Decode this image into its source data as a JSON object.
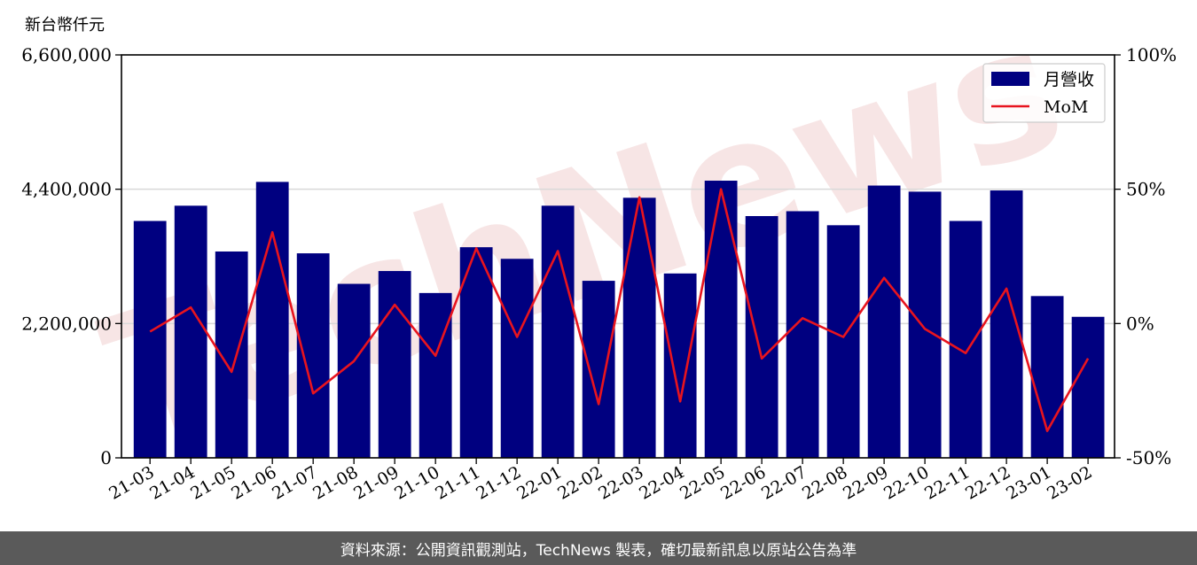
{
  "unit_label": "新台幣仟元",
  "footer_text": "資料來源：公開資訊觀測站，TechNews 製表，確切最新訊息以原站公告為準",
  "colors": {
    "bar": "#000080",
    "line": "#e8141e",
    "grid": "#d9d9d9",
    "footer_bg": "#5a5a5a"
  },
  "chart_data": {
    "type": "bar",
    "categories": [
      "21-03",
      "21-04",
      "21-05",
      "21-06",
      "21-07",
      "21-08",
      "21-09",
      "21-10",
      "21-11",
      "21-12",
      "22-01",
      "22-02",
      "22-03",
      "22-04",
      "22-05",
      "22-06",
      "22-07",
      "22-08",
      "22-09",
      "22-10",
      "22-11",
      "22-12",
      "23-01",
      "23-02"
    ],
    "series": [
      {
        "name": "月營收",
        "type": "bar",
        "axis": "left",
        "values": [
          3880000,
          4130000,
          3380000,
          4520000,
          3350000,
          2850000,
          3060000,
          2700000,
          3450000,
          3260000,
          4130000,
          2900000,
          4260000,
          3020000,
          4540000,
          3960000,
          4040000,
          3810000,
          4460000,
          4360000,
          3880000,
          4380000,
          2650000,
          2310000
        ]
      },
      {
        "name": "MoM",
        "type": "line",
        "axis": "right",
        "values": [
          -3,
          6,
          -18,
          34,
          -26,
          -14,
          7,
          -12,
          28,
          -5,
          27,
          -30,
          47,
          -29,
          50,
          -13,
          2,
          -5,
          17,
          -2,
          -11,
          13,
          -40,
          -13
        ]
      }
    ],
    "left_axis": {
      "ylim": [
        0,
        6600000
      ],
      "ticks": [
        "0",
        "2,200,000",
        "4,400,000",
        "6,600,000"
      ],
      "tick_values": [
        0,
        2200000,
        4400000,
        6600000
      ]
    },
    "right_axis": {
      "ylim": [
        -50,
        100
      ],
      "ticks": [
        "-50%",
        "0%",
        "50%",
        "100%"
      ],
      "tick_values": [
        -50,
        0,
        50,
        100
      ]
    },
    "legend": {
      "position": "top-right",
      "entries": [
        "月營收",
        "MoM"
      ]
    },
    "grid": true,
    "watermark": "TechNews"
  }
}
